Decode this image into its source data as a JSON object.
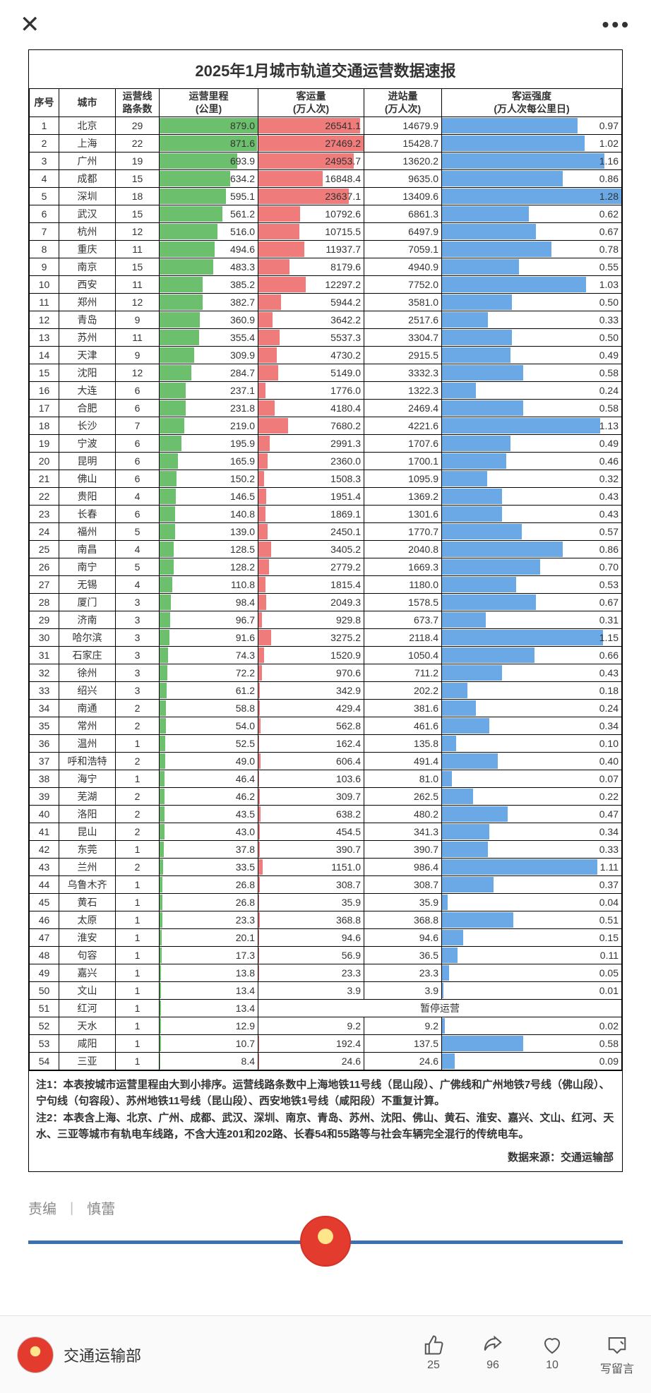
{
  "title": "2025年1月城市轨道交通运营数据速报",
  "columns": {
    "idx": "序号",
    "city": "城市",
    "lines": "运营线\n路条数",
    "distance": "运营里程\n(公里)",
    "passengers": "客运量\n(万人次)",
    "entries": "进站量\n(万人次)",
    "intensity": "客运强度\n(万人次每公里日)"
  },
  "bar_colors": {
    "distance": "#6cbf6c",
    "passengers": "#f07b7b",
    "intensity": "#6aa9e6"
  },
  "bar_max": {
    "distance": 879.0,
    "passengers": 27469.2,
    "intensity": 1.28
  },
  "suspended_text": "暂停运营",
  "rows": [
    {
      "idx": 1,
      "city": "北京",
      "lines": 29,
      "distance": 879.0,
      "passengers": 26541.1,
      "entries": "14679.9",
      "intensity": 0.97
    },
    {
      "idx": 2,
      "city": "上海",
      "lines": 22,
      "distance": 871.6,
      "passengers": 27469.2,
      "entries": "15428.7",
      "intensity": 1.02
    },
    {
      "idx": 3,
      "city": "广州",
      "lines": 19,
      "distance": 693.9,
      "passengers": 24953.7,
      "entries": "13620.2",
      "intensity": 1.16
    },
    {
      "idx": 4,
      "city": "成都",
      "lines": 15,
      "distance": 634.2,
      "passengers": 16848.4,
      "entries": "9635.0",
      "intensity": 0.86
    },
    {
      "idx": 5,
      "city": "深圳",
      "lines": 18,
      "distance": 595.1,
      "passengers": 23637.1,
      "entries": "13409.6",
      "intensity": 1.28
    },
    {
      "idx": 6,
      "city": "武汉",
      "lines": 15,
      "distance": 561.2,
      "passengers": 10792.6,
      "entries": "6861.3",
      "intensity": 0.62
    },
    {
      "idx": 7,
      "city": "杭州",
      "lines": 12,
      "distance": 516.0,
      "passengers": 10715.5,
      "entries": "6497.9",
      "intensity": 0.67
    },
    {
      "idx": 8,
      "city": "重庆",
      "lines": 11,
      "distance": 494.6,
      "passengers": 11937.7,
      "entries": "7059.1",
      "intensity": 0.78
    },
    {
      "idx": 9,
      "city": "南京",
      "lines": 15,
      "distance": 483.3,
      "passengers": 8179.6,
      "entries": "4940.9",
      "intensity": 0.55
    },
    {
      "idx": 10,
      "city": "西安",
      "lines": 11,
      "distance": 385.2,
      "passengers": 12297.2,
      "entries": "7752.0",
      "intensity": 1.03
    },
    {
      "idx": 11,
      "city": "郑州",
      "lines": 12,
      "distance": 382.7,
      "passengers": 5944.2,
      "entries": "3581.0",
      "intensity": 0.5
    },
    {
      "idx": 12,
      "city": "青岛",
      "lines": 9,
      "distance": 360.9,
      "passengers": 3642.2,
      "entries": "2517.6",
      "intensity": 0.33
    },
    {
      "idx": 13,
      "city": "苏州",
      "lines": 11,
      "distance": 355.4,
      "passengers": 5537.3,
      "entries": "3304.7",
      "intensity": 0.5
    },
    {
      "idx": 14,
      "city": "天津",
      "lines": 9,
      "distance": 309.9,
      "passengers": 4730.2,
      "entries": "2915.5",
      "intensity": 0.49
    },
    {
      "idx": 15,
      "city": "沈阳",
      "lines": 12,
      "distance": 284.7,
      "passengers": 5149.0,
      "entries": "3332.3",
      "intensity": 0.58
    },
    {
      "idx": 16,
      "city": "大连",
      "lines": 6,
      "distance": 237.1,
      "passengers": 1776.0,
      "entries": "1322.3",
      "intensity": 0.24
    },
    {
      "idx": 17,
      "city": "合肥",
      "lines": 6,
      "distance": 231.8,
      "passengers": 4180.4,
      "entries": "2469.4",
      "intensity": 0.58
    },
    {
      "idx": 18,
      "city": "长沙",
      "lines": 7,
      "distance": 219.0,
      "passengers": 7680.2,
      "entries": "4221.6",
      "intensity": 1.13
    },
    {
      "idx": 19,
      "city": "宁波",
      "lines": 6,
      "distance": 195.9,
      "passengers": 2991.3,
      "entries": "1707.6",
      "intensity": 0.49
    },
    {
      "idx": 20,
      "city": "昆明",
      "lines": 6,
      "distance": 165.9,
      "passengers": 2360.0,
      "entries": "1700.1",
      "intensity": 0.46
    },
    {
      "idx": 21,
      "city": "佛山",
      "lines": 6,
      "distance": 150.2,
      "passengers": 1508.3,
      "entries": "1095.9",
      "intensity": 0.32
    },
    {
      "idx": 22,
      "city": "贵阳",
      "lines": 4,
      "distance": 146.5,
      "passengers": 1951.4,
      "entries": "1369.2",
      "intensity": 0.43
    },
    {
      "idx": 23,
      "city": "长春",
      "lines": 6,
      "distance": 140.8,
      "passengers": 1869.1,
      "entries": "1301.6",
      "intensity": 0.43
    },
    {
      "idx": 24,
      "city": "福州",
      "lines": 5,
      "distance": 139.0,
      "passengers": 2450.1,
      "entries": "1770.7",
      "intensity": 0.57
    },
    {
      "idx": 25,
      "city": "南昌",
      "lines": 4,
      "distance": 128.5,
      "passengers": 3405.2,
      "entries": "2040.8",
      "intensity": 0.86
    },
    {
      "idx": 26,
      "city": "南宁",
      "lines": 5,
      "distance": 128.2,
      "passengers": 2779.2,
      "entries": "1669.3",
      "intensity": 0.7
    },
    {
      "idx": 27,
      "city": "无锡",
      "lines": 4,
      "distance": 110.8,
      "passengers": 1815.4,
      "entries": "1180.0",
      "intensity": 0.53
    },
    {
      "idx": 28,
      "city": "厦门",
      "lines": 3,
      "distance": 98.4,
      "passengers": 2049.3,
      "entries": "1578.5",
      "intensity": 0.67
    },
    {
      "idx": 29,
      "city": "济南",
      "lines": 3,
      "distance": 96.7,
      "passengers": 929.8,
      "entries": "673.7",
      "intensity": 0.31
    },
    {
      "idx": 30,
      "city": "哈尔滨",
      "lines": 3,
      "distance": 91.6,
      "passengers": 3275.2,
      "entries": "2118.4",
      "intensity": 1.15
    },
    {
      "idx": 31,
      "city": "石家庄",
      "lines": 3,
      "distance": 74.3,
      "passengers": 1520.9,
      "entries": "1050.4",
      "intensity": 0.66
    },
    {
      "idx": 32,
      "city": "徐州",
      "lines": 3,
      "distance": 72.2,
      "passengers": 970.6,
      "entries": "711.2",
      "intensity": 0.43
    },
    {
      "idx": 33,
      "city": "绍兴",
      "lines": 3,
      "distance": 61.2,
      "passengers": 342.9,
      "entries": "202.2",
      "intensity": 0.18
    },
    {
      "idx": 34,
      "city": "南通",
      "lines": 2,
      "distance": 58.8,
      "passengers": 429.4,
      "entries": "381.6",
      "intensity": 0.24
    },
    {
      "idx": 35,
      "city": "常州",
      "lines": 2,
      "distance": 54.0,
      "passengers": 562.8,
      "entries": "461.6",
      "intensity": 0.34
    },
    {
      "idx": 36,
      "city": "温州",
      "lines": 1,
      "distance": 52.5,
      "passengers": 162.4,
      "entries": "135.8",
      "intensity": 0.1
    },
    {
      "idx": 37,
      "city": "呼和浩特",
      "lines": 2,
      "distance": 49.0,
      "passengers": 606.4,
      "entries": "491.4",
      "intensity": 0.4
    },
    {
      "idx": 38,
      "city": "海宁",
      "lines": 1,
      "distance": 46.4,
      "passengers": 103.6,
      "entries": "81.0",
      "intensity": 0.07
    },
    {
      "idx": 39,
      "city": "芜湖",
      "lines": 2,
      "distance": 46.2,
      "passengers": 309.7,
      "entries": "262.5",
      "intensity": 0.22
    },
    {
      "idx": 40,
      "city": "洛阳",
      "lines": 2,
      "distance": 43.5,
      "passengers": 638.2,
      "entries": "480.2",
      "intensity": 0.47
    },
    {
      "idx": 41,
      "city": "昆山",
      "lines": 2,
      "distance": 43.0,
      "passengers": 454.5,
      "entries": "341.3",
      "intensity": 0.34
    },
    {
      "idx": 42,
      "city": "东莞",
      "lines": 1,
      "distance": 37.8,
      "passengers": 390.7,
      "entries": "390.7",
      "intensity": 0.33
    },
    {
      "idx": 43,
      "city": "兰州",
      "lines": 2,
      "distance": 33.5,
      "passengers": 1151.0,
      "entries": "986.4",
      "intensity": 1.11
    },
    {
      "idx": 44,
      "city": "乌鲁木齐",
      "lines": 1,
      "distance": 26.8,
      "passengers": 308.7,
      "entries": "308.7",
      "intensity": 0.37
    },
    {
      "idx": 45,
      "city": "黄石",
      "lines": 1,
      "distance": 26.8,
      "passengers": 35.9,
      "entries": "35.9",
      "intensity": 0.04
    },
    {
      "idx": 46,
      "city": "太原",
      "lines": 1,
      "distance": 23.3,
      "passengers": 368.8,
      "entries": "368.8",
      "intensity": 0.51
    },
    {
      "idx": 47,
      "city": "淮安",
      "lines": 1,
      "distance": 20.1,
      "passengers": 94.6,
      "entries": "94.6",
      "intensity": 0.15
    },
    {
      "idx": 48,
      "city": "句容",
      "lines": 1,
      "distance": 17.3,
      "passengers": 56.9,
      "entries": "36.5",
      "intensity": 0.11
    },
    {
      "idx": 49,
      "city": "嘉兴",
      "lines": 1,
      "distance": 13.8,
      "passengers": 23.3,
      "entries": "23.3",
      "intensity": 0.05
    },
    {
      "idx": 50,
      "city": "文山",
      "lines": 1,
      "distance": 13.4,
      "passengers": 3.9,
      "entries": "3.9",
      "intensity": 0.01
    },
    {
      "idx": 51,
      "city": "红河",
      "lines": 1,
      "distance": 13.4,
      "suspended": true
    },
    {
      "idx": 52,
      "city": "天水",
      "lines": 1,
      "distance": 12.9,
      "passengers": 9.2,
      "entries": "9.2",
      "intensity": 0.02
    },
    {
      "idx": 53,
      "city": "咸阳",
      "lines": 1,
      "distance": 10.7,
      "passengers": 192.4,
      "entries": "137.5",
      "intensity": 0.58
    },
    {
      "idx": 54,
      "city": "三亚",
      "lines": 1,
      "distance": 8.4,
      "passengers": 24.6,
      "entries": "24.6",
      "intensity": 0.09
    }
  ],
  "notes": [
    "注1：本表按城市运营里程由大到小排序。运营线路条数中上海地铁11号线（昆山段）、广佛线和广州地铁7号线（佛山段）、宁句线（句容段）、苏州地铁11号线（昆山段）、西安地铁1号线（咸阳段）不重复计算。",
    "注2：本表含上海、北京、广州、成都、武汉、深圳、南京、青岛、苏州、沈阳、佛山、黄石、淮安、嘉兴、文山、红河、天水、三亚等城市有轨电车线路，不含大连201和202路、长春54和55路等与社会车辆完全混行的传统电车。"
  ],
  "source_label": "数据来源：交通运输部",
  "editor": {
    "label": "责编",
    "name": "慎蕾"
  },
  "account_name": "交通运输部",
  "actions": {
    "like_count": "25",
    "share_count": "96",
    "fav_count": "10",
    "comment_label": "写留言"
  }
}
